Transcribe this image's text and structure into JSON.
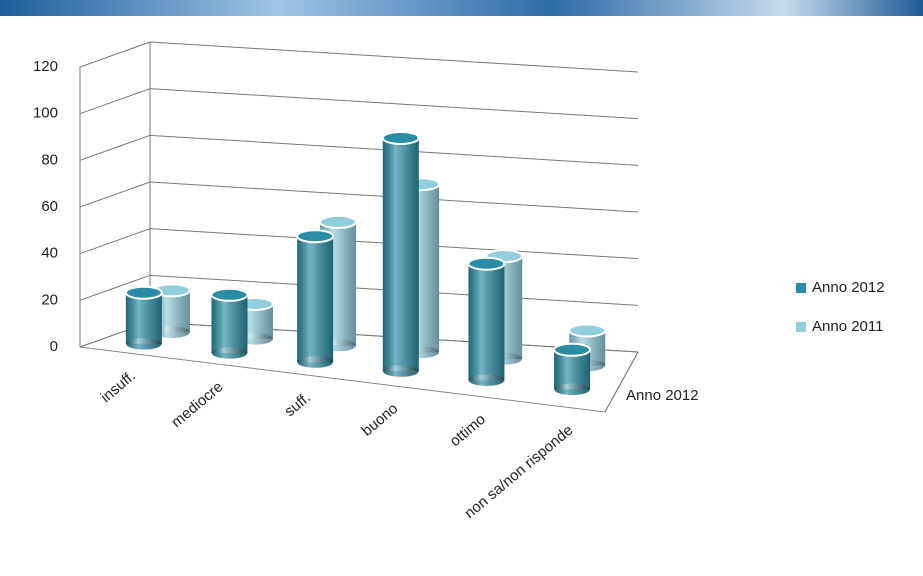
{
  "chart_data": {
    "type": "bar3d",
    "categories": [
      "insuff.",
      "mediocre",
      "suff.",
      "buono",
      "ottimo",
      "non sa/non risponde"
    ],
    "depth_label": "Anno 2012",
    "series": [
      {
        "name": "Anno 2012",
        "color": "#2b8da5",
        "values": [
          22,
          25,
          54,
          100,
          50,
          17
        ]
      },
      {
        "name": "Anno 2011",
        "color": "#91cfdf",
        "values": [
          18,
          15,
          53,
          72,
          44,
          15
        ]
      }
    ],
    "ylim": [
      0,
      120
    ],
    "yticks": [
      0,
      20,
      40,
      60,
      80,
      100,
      120
    ],
    "grid": true,
    "legend": "right"
  }
}
